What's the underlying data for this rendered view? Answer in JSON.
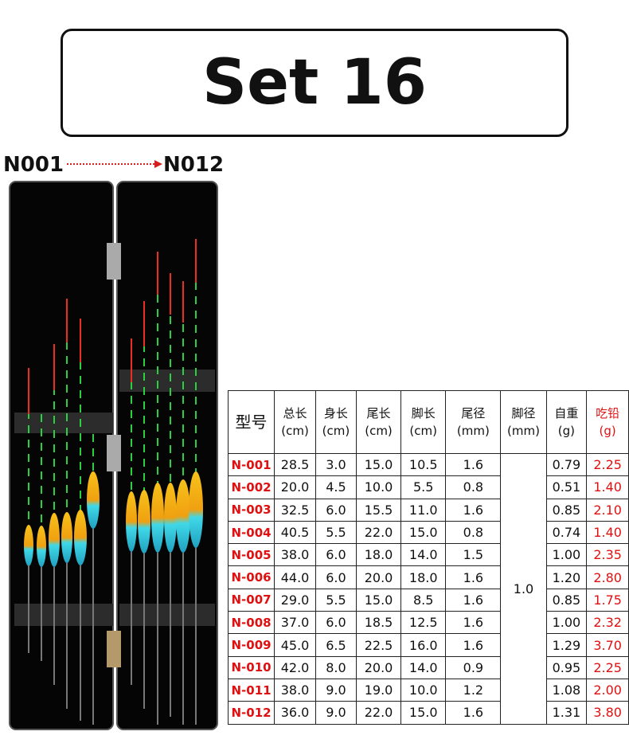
{
  "title": "Set 16",
  "range": {
    "from": "N001",
    "to": "N012"
  },
  "table": {
    "header": [
      {
        "name": "型号"
      },
      {
        "name": "总长",
        "unit": "(cm)"
      },
      {
        "name": "身长",
        "unit": "(cm)"
      },
      {
        "name": "尾长",
        "unit": "(cm)"
      },
      {
        "name": "脚长",
        "unit": "(cm)"
      },
      {
        "name": "尾径",
        "unit": "(mm)"
      },
      {
        "name": "脚径",
        "unit": "(mm)"
      },
      {
        "name": "自重",
        "unit": "(g)"
      },
      {
        "name": "吃铅",
        "unit": "(g)"
      }
    ],
    "foot_diameter": "1.0",
    "rows": [
      [
        "N-001",
        "28.5",
        "3.0",
        "15.0",
        "10.5",
        "1.6",
        "0.79",
        "2.25"
      ],
      [
        "N-002",
        "20.0",
        "4.5",
        "10.0",
        "5.5",
        "0.8",
        "0.51",
        "1.40"
      ],
      [
        "N-003",
        "32.5",
        "6.0",
        "15.5",
        "11.0",
        "1.6",
        "0.85",
        "2.10"
      ],
      [
        "N-004",
        "40.5",
        "5.5",
        "22.0",
        "15.0",
        "0.8",
        "0.74",
        "1.40"
      ],
      [
        "N-005",
        "38.0",
        "6.0",
        "18.0",
        "14.0",
        "1.5",
        "1.00",
        "2.35"
      ],
      [
        "N-006",
        "44.0",
        "6.0",
        "20.0",
        "18.0",
        "1.6",
        "1.20",
        "2.80"
      ],
      [
        "N-007",
        "29.0",
        "5.5",
        "15.0",
        "8.5",
        "1.6",
        "0.85",
        "1.75"
      ],
      [
        "N-008",
        "37.0",
        "6.0",
        "18.5",
        "12.5",
        "1.6",
        "1.00",
        "2.32"
      ],
      [
        "N-009",
        "45.0",
        "6.5",
        "22.5",
        "16.0",
        "1.6",
        "1.29",
        "3.70"
      ],
      [
        "N-010",
        "42.0",
        "8.0",
        "20.0",
        "14.0",
        "0.9",
        "0.95",
        "2.25"
      ],
      [
        "N-011",
        "38.0",
        "9.0",
        "19.0",
        "10.0",
        "1.2",
        "1.08",
        "2.00"
      ],
      [
        "N-012",
        "36.0",
        "9.0",
        "22.0",
        "15.0",
        "1.6",
        "1.31",
        "3.80"
      ]
    ]
  }
}
